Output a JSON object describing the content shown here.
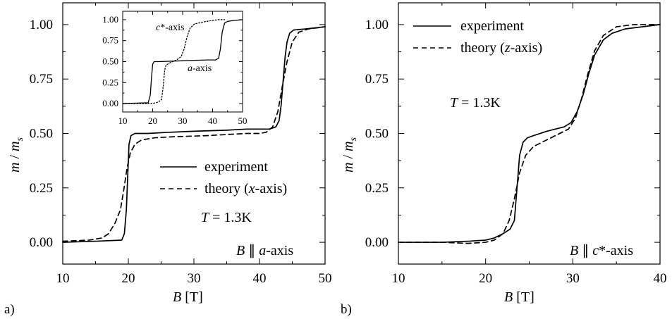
{
  "chart_data": [
    {
      "type": "line",
      "panel_label": "a)",
      "xlabel": "B",
      "xlabel_unit": "[T]",
      "ylabel_main": "m",
      "ylabel_sep": " / ",
      "ylabel_sub_base": "m",
      "ylabel_sub": "s",
      "xlim": [
        10,
        50
      ],
      "ylim": [
        -0.1,
        1.1
      ],
      "xticks": [
        "10",
        "20",
        "30",
        "40",
        "50"
      ],
      "yticks": [
        "0.00",
        "0.25",
        "0.50",
        "0.75",
        "1.00"
      ],
      "annotation_T": "T",
      "annotation_T_value": " = 1.3K",
      "annotation_B": "B",
      "annotation_B_rest": " ∥ ",
      "annotation_axis_italic": "a",
      "annotation_axis_rest": "-axis",
      "legend": [
        "experiment",
        "theory (",
        "x",
        "-axis)"
      ],
      "series": [
        {
          "name": "experiment",
          "style": "solid",
          "x": [
            10,
            15,
            19,
            19.4,
            19.7,
            19.9,
            20.1,
            20.4,
            21,
            23,
            26,
            30,
            35,
            38,
            40,
            41.5,
            42.5,
            43,
            43.3,
            43.6,
            43.9,
            44.2,
            44.6,
            45.2,
            47,
            50
          ],
          "y": [
            0.0,
            0.005,
            0.01,
            0.04,
            0.15,
            0.3,
            0.45,
            0.49,
            0.5,
            0.5,
            0.505,
            0.51,
            0.515,
            0.52,
            0.52,
            0.52,
            0.53,
            0.56,
            0.63,
            0.74,
            0.85,
            0.92,
            0.96,
            0.975,
            0.98,
            0.99
          ]
        },
        {
          "name": "theory (x-axis)",
          "style": "dashed",
          "x": [
            10,
            14,
            16,
            17,
            18,
            18.8,
            19.3,
            19.8,
            20.3,
            21,
            22,
            24,
            27,
            32,
            38,
            40,
            41,
            42,
            42.8,
            43.5,
            44.2,
            45,
            46,
            47.5,
            50
          ],
          "y": [
            0.005,
            0.01,
            0.02,
            0.04,
            0.09,
            0.15,
            0.24,
            0.34,
            0.41,
            0.45,
            0.47,
            0.48,
            0.485,
            0.49,
            0.5,
            0.5,
            0.505,
            0.53,
            0.6,
            0.72,
            0.83,
            0.92,
            0.965,
            0.98,
            0.99
          ]
        }
      ],
      "inset": {
        "xlim": [
          10,
          50
        ],
        "ylim": [
          -0.1,
          1.1
        ],
        "xticks": [
          "10",
          "20",
          "30",
          "40",
          "50"
        ],
        "yticks": [
          "0.00",
          "0.25",
          "0.50",
          "0.75",
          "1.00"
        ],
        "label_c": "c",
        "label_c_rest": "*-axis",
        "label_a": "a",
        "label_a_rest": "-axis",
        "series": [
          {
            "name": "a-axis",
            "style": "solid",
            "x": [
              10,
              18.5,
              19.2,
              19.6,
              20,
              20.5,
              22,
              30,
              38,
              41,
              42,
              42.6,
              43.2,
              44,
              45,
              47,
              50
            ],
            "y": [
              0.0,
              0.01,
              0.1,
              0.3,
              0.47,
              0.5,
              0.5,
              0.51,
              0.52,
              0.52,
              0.54,
              0.65,
              0.85,
              0.96,
              0.98,
              0.99,
              1.0
            ]
          },
          {
            "name": "c*-axis",
            "style": "dotted",
            "x": [
              10,
              20,
              22,
              23,
              23.5,
              24,
              24.5,
              26,
              28,
              29.5,
              30.5,
              31.5,
              32.5,
              34,
              38,
              42,
              44
            ],
            "y": [
              0.0,
              0.0,
              0.02,
              0.05,
              0.2,
              0.4,
              0.46,
              0.49,
              0.52,
              0.56,
              0.65,
              0.8,
              0.9,
              0.95,
              0.98,
              1.0,
              1.0
            ]
          }
        ]
      }
    },
    {
      "type": "line",
      "panel_label": "b)",
      "xlabel": "B",
      "xlabel_unit": "[T]",
      "ylabel_main": "m",
      "ylabel_sep": " / ",
      "ylabel_sub_base": "m",
      "ylabel_sub": "s",
      "xlim": [
        10,
        40
      ],
      "ylim": [
        -0.1,
        1.1
      ],
      "xticks": [
        "10",
        "20",
        "30",
        "40"
      ],
      "yticks": [
        "0.00",
        "0.25",
        "0.50",
        "0.75",
        "1.00"
      ],
      "annotation_T": "T",
      "annotation_T_value": " = 1.3K",
      "annotation_B": "B",
      "annotation_B_rest": " ∥ ",
      "annotation_axis_italic": "c",
      "annotation_axis_rest": "*-axis",
      "legend": [
        "experiment",
        "theory (",
        "z",
        "-axis)"
      ],
      "series": [
        {
          "name": "experiment",
          "style": "solid",
          "x": [
            10,
            15,
            18,
            20,
            21,
            22,
            22.8,
            23.3,
            23.6,
            23.9,
            24.3,
            24.8,
            25.5,
            27,
            29,
            29.8,
            30.5,
            31.2,
            31.8,
            32.5,
            33.5,
            34.5,
            36,
            38,
            40
          ],
          "y": [
            0.0,
            0.0,
            0.005,
            0.01,
            0.02,
            0.04,
            0.06,
            0.1,
            0.25,
            0.4,
            0.46,
            0.48,
            0.49,
            0.51,
            0.53,
            0.55,
            0.6,
            0.68,
            0.77,
            0.86,
            0.93,
            0.96,
            0.98,
            0.99,
            1.0
          ]
        },
        {
          "name": "theory (z-axis)",
          "style": "dashed",
          "x": [
            10,
            15,
            18,
            20,
            21,
            22,
            22.7,
            23.3,
            23.9,
            24.6,
            25.5,
            26.5,
            28,
            29.5,
            30.3,
            31,
            31.7,
            32.5,
            33.5,
            35,
            37,
            40
          ],
          "y": [
            0.0,
            0.0,
            -0.005,
            0.0,
            0.01,
            0.04,
            0.1,
            0.2,
            0.32,
            0.4,
            0.44,
            0.46,
            0.49,
            0.52,
            0.57,
            0.66,
            0.77,
            0.88,
            0.95,
            0.99,
            1.0,
            1.0
          ]
        }
      ]
    }
  ]
}
